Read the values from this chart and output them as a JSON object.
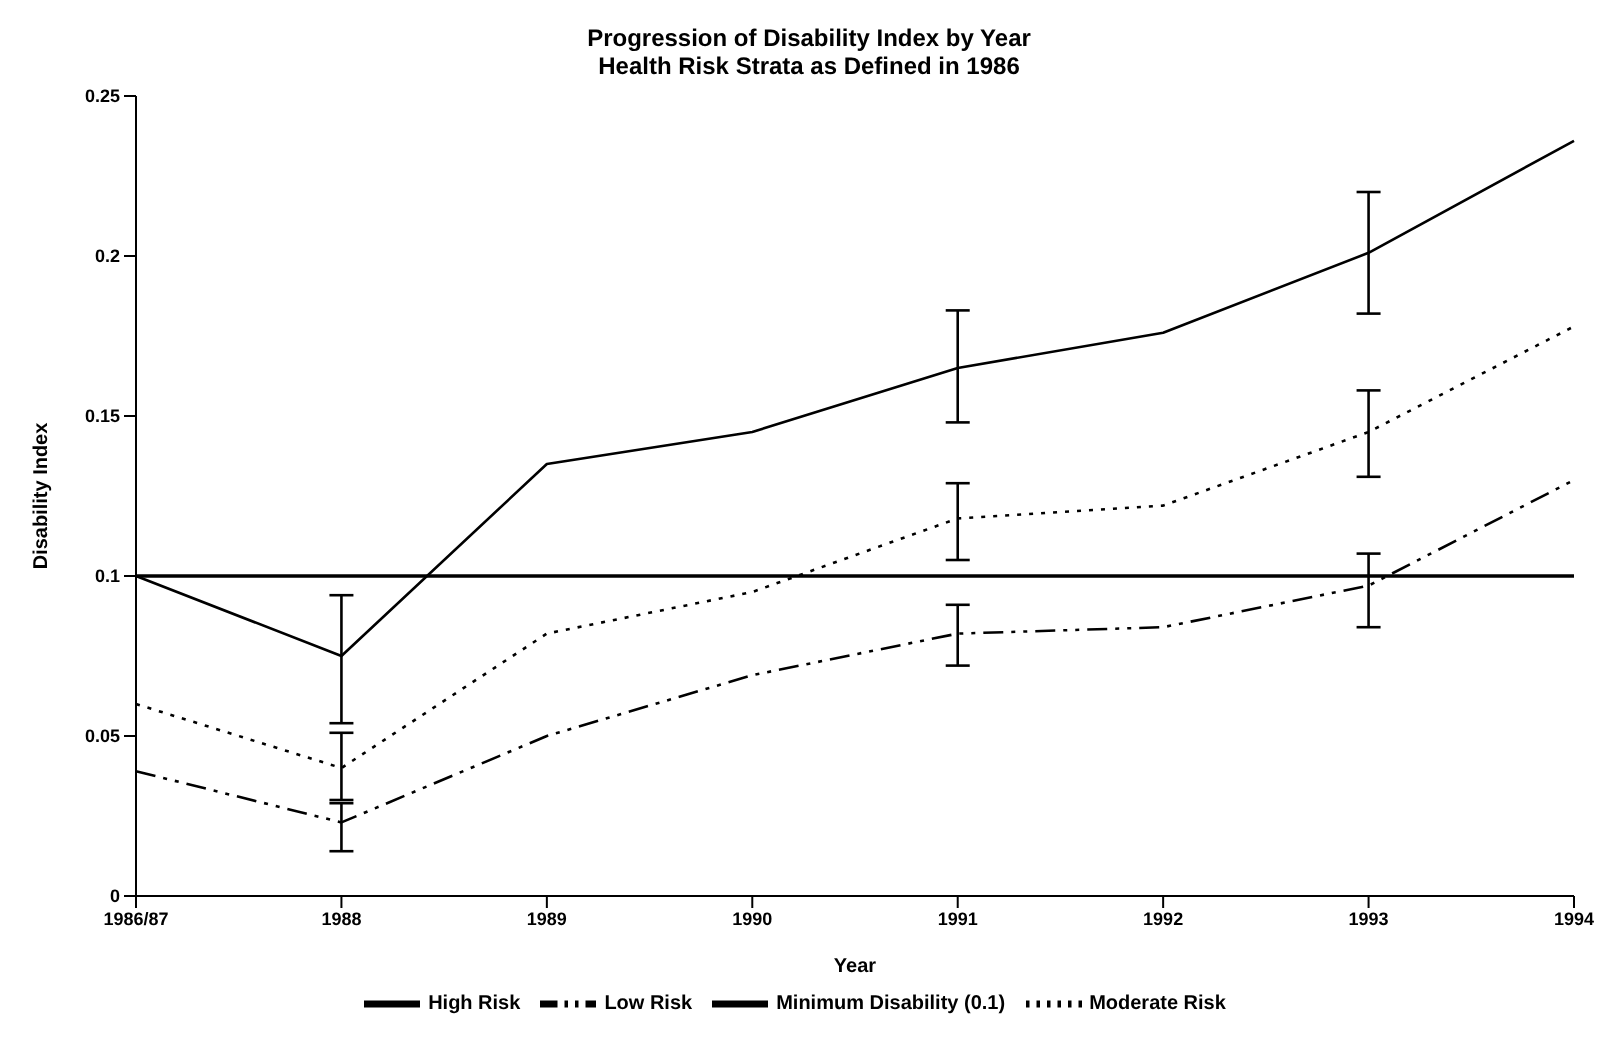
{
  "chart_data": {
    "type": "line",
    "title": "Progression of Disability Index by Year",
    "subtitle": "Health Risk Strata as Defined in 1986",
    "xlabel": "Year",
    "ylabel": "Disability Index",
    "categories": [
      "1986/87",
      "1988",
      "1989",
      "1990",
      "1991",
      "1992",
      "1993",
      "1994"
    ],
    "series": [
      {
        "name": "Low Risk",
        "color": "#000000",
        "line_style": "dashdot",
        "values": [
          0.039,
          0.023,
          0.05,
          0.069,
          0.082,
          0.084,
          0.097,
          0.13
        ],
        "errors": [
          null,
          [
            0.014,
            0.029
          ],
          null,
          null,
          [
            0.072,
            0.091
          ],
          null,
          [
            0.084,
            0.107
          ],
          null
        ]
      },
      {
        "name": "Moderate Risk",
        "color": "#000000",
        "line_style": "dotted",
        "values": [
          0.06,
          0.04,
          0.082,
          0.095,
          0.118,
          0.122,
          0.145,
          0.178
        ],
        "errors": [
          null,
          [
            0.03,
            0.051
          ],
          null,
          null,
          [
            0.105,
            0.129
          ],
          null,
          [
            0.131,
            0.158
          ],
          null
        ]
      },
      {
        "name": "High Risk",
        "color": "#000000",
        "line_style": "solid",
        "values": [
          0.1,
          0.075,
          0.135,
          0.145,
          0.165,
          0.176,
          0.201,
          0.236
        ],
        "errors": [
          null,
          [
            0.054,
            0.094
          ],
          null,
          null,
          [
            0.148,
            0.183
          ],
          null,
          [
            0.182,
            0.22
          ],
          null
        ]
      },
      {
        "name": "Minimum Disability (0.1)",
        "color": "#000000",
        "line_style": "solid",
        "values": [
          0.1,
          0.1,
          0.1,
          0.1,
          0.1,
          0.1,
          0.1,
          0.1
        ]
      }
    ],
    "ylim": [
      0,
      0.25
    ],
    "yticks": [
      0,
      0.05,
      0.1,
      0.15,
      0.2,
      0.25
    ],
    "grid": false,
    "legend": "bottom",
    "marker": "none"
  }
}
